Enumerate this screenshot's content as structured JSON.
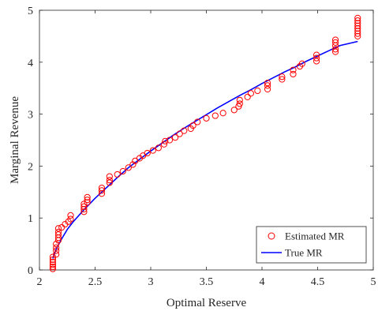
{
  "chart_data": {
    "type": "scatter",
    "xlabel": "Optimal Reserve",
    "ylabel": "Marginal Revenue",
    "xlim": [
      2,
      5
    ],
    "ylim": [
      0,
      5
    ],
    "xticks": [
      2,
      2.5,
      3,
      3.5,
      4,
      4.5,
      5
    ],
    "yticks": [
      0,
      1,
      2,
      3,
      4,
      5
    ],
    "xtick_labels": [
      "2",
      "2.5",
      "3",
      "3.5",
      "4",
      "4.5",
      "5"
    ],
    "ytick_labels": [
      "0",
      "1",
      "2",
      "3",
      "4",
      "5"
    ],
    "grid": false,
    "legend_position": "bottom-right",
    "series": [
      {
        "name": "Estimated MR",
        "kind": "scatter",
        "marker": "circle-open",
        "color": "#ff0000",
        "points": [
          [
            2.12,
            0.02
          ],
          [
            2.12,
            0.06
          ],
          [
            2.12,
            0.1
          ],
          [
            2.12,
            0.15
          ],
          [
            2.12,
            0.2
          ],
          [
            2.12,
            0.25
          ],
          [
            2.15,
            0.3
          ],
          [
            2.15,
            0.37
          ],
          [
            2.15,
            0.43
          ],
          [
            2.15,
            0.5
          ],
          [
            2.17,
            0.57
          ],
          [
            2.17,
            0.62
          ],
          [
            2.17,
            0.68
          ],
          [
            2.17,
            0.73
          ],
          [
            2.17,
            0.8
          ],
          [
            2.2,
            0.82
          ],
          [
            2.23,
            0.88
          ],
          [
            2.26,
            0.93
          ],
          [
            2.28,
            0.98
          ],
          [
            2.28,
            1.05
          ],
          [
            2.4,
            1.12
          ],
          [
            2.4,
            1.17
          ],
          [
            2.4,
            1.22
          ],
          [
            2.4,
            1.27
          ],
          [
            2.43,
            1.3
          ],
          [
            2.43,
            1.35
          ],
          [
            2.43,
            1.4
          ],
          [
            2.56,
            1.47
          ],
          [
            2.56,
            1.53
          ],
          [
            2.56,
            1.58
          ],
          [
            2.63,
            1.68
          ],
          [
            2.63,
            1.73
          ],
          [
            2.63,
            1.8
          ],
          [
            2.7,
            1.84
          ],
          [
            2.75,
            1.9
          ],
          [
            2.8,
            1.97
          ],
          [
            2.84,
            2.03
          ],
          [
            2.86,
            2.1
          ],
          [
            2.9,
            2.15
          ],
          [
            2.93,
            2.2
          ],
          [
            2.97,
            2.25
          ],
          [
            3.02,
            2.3
          ],
          [
            3.07,
            2.35
          ],
          [
            3.12,
            2.42
          ],
          [
            3.13,
            2.48
          ],
          [
            3.17,
            2.5
          ],
          [
            3.22,
            2.55
          ],
          [
            3.26,
            2.62
          ],
          [
            3.3,
            2.68
          ],
          [
            3.36,
            2.72
          ],
          [
            3.38,
            2.78
          ],
          [
            3.42,
            2.85
          ],
          [
            3.5,
            2.92
          ],
          [
            3.58,
            2.97
          ],
          [
            3.65,
            3.02
          ],
          [
            3.75,
            3.08
          ],
          [
            3.79,
            3.15
          ],
          [
            3.8,
            3.2
          ],
          [
            3.8,
            3.27
          ],
          [
            3.87,
            3.33
          ],
          [
            3.9,
            3.4
          ],
          [
            3.96,
            3.45
          ],
          [
            4.05,
            3.48
          ],
          [
            4.05,
            3.55
          ],
          [
            4.05,
            3.6
          ],
          [
            4.18,
            3.67
          ],
          [
            4.18,
            3.72
          ],
          [
            4.28,
            3.77
          ],
          [
            4.28,
            3.85
          ],
          [
            4.34,
            3.92
          ],
          [
            4.36,
            3.97
          ],
          [
            4.49,
            4.02
          ],
          [
            4.49,
            4.08
          ],
          [
            4.49,
            4.14
          ],
          [
            4.66,
            4.2
          ],
          [
            4.66,
            4.25
          ],
          [
            4.66,
            4.32
          ],
          [
            4.66,
            4.38
          ],
          [
            4.66,
            4.43
          ],
          [
            4.86,
            4.5
          ],
          [
            4.86,
            4.55
          ],
          [
            4.86,
            4.6
          ],
          [
            4.86,
            4.65
          ],
          [
            4.86,
            4.7
          ],
          [
            4.86,
            4.75
          ],
          [
            4.86,
            4.8
          ],
          [
            4.86,
            4.85
          ]
        ]
      },
      {
        "name": "True MR",
        "kind": "line",
        "color": "#0000ff",
        "points": [
          [
            2.12,
            0.22
          ],
          [
            2.15,
            0.4
          ],
          [
            2.2,
            0.6
          ],
          [
            2.25,
            0.78
          ],
          [
            2.3,
            0.92
          ],
          [
            2.4,
            1.16
          ],
          [
            2.5,
            1.38
          ],
          [
            2.6,
            1.58
          ],
          [
            2.7,
            1.78
          ],
          [
            2.8,
            1.97
          ],
          [
            2.9,
            2.13
          ],
          [
            3.0,
            2.29
          ],
          [
            3.1,
            2.44
          ],
          [
            3.2,
            2.59
          ],
          [
            3.3,
            2.73
          ],
          [
            3.4,
            2.86
          ],
          [
            3.5,
            2.99
          ],
          [
            3.6,
            3.12
          ],
          [
            3.7,
            3.24
          ],
          [
            3.8,
            3.36
          ],
          [
            3.9,
            3.47
          ],
          [
            4.0,
            3.59
          ],
          [
            4.1,
            3.7
          ],
          [
            4.2,
            3.81
          ],
          [
            4.3,
            3.91
          ],
          [
            4.4,
            4.02
          ],
          [
            4.5,
            4.12
          ],
          [
            4.6,
            4.22
          ],
          [
            4.7,
            4.32
          ],
          [
            4.86,
            4.4
          ]
        ]
      }
    ]
  }
}
